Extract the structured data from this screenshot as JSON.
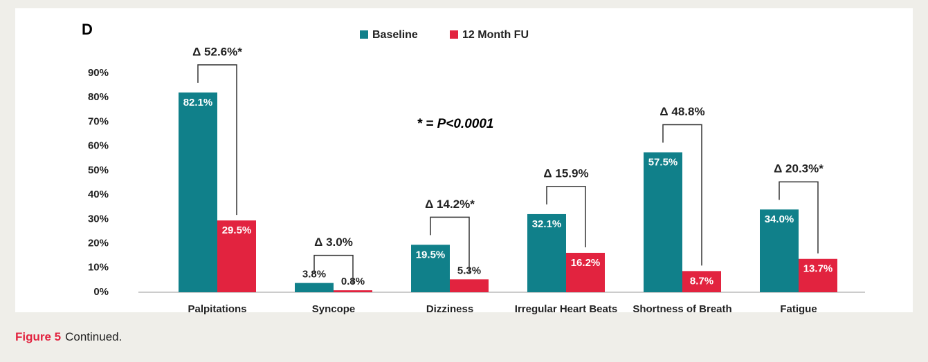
{
  "chart_data": {
    "type": "bar",
    "panel_label": "D",
    "note": "* = P<0.0001",
    "categories": [
      "Palpitations",
      "Syncope",
      "Dizziness",
      "Irregular Heart Beats",
      "Shortness of Breath",
      "Fatigue"
    ],
    "series": [
      {
        "name": "Baseline",
        "color": "#10808a",
        "values": [
          82.1,
          3.8,
          19.5,
          32.1,
          57.5,
          34.0
        ],
        "value_labels": [
          "82.1%",
          "3.8%",
          "19.5%",
          "32.1%",
          "57.5%",
          "34.0%"
        ]
      },
      {
        "name": "12 Month FU",
        "color": "#e2233f",
        "values": [
          29.5,
          0.8,
          5.3,
          16.2,
          8.7,
          13.7
        ],
        "value_labels": [
          "29.5%",
          "0.8%",
          "5.3%",
          "16.2%",
          "8.7%",
          "13.7%"
        ]
      }
    ],
    "annotations": [
      "Δ 52.6%*",
      "Δ 3.0%",
      "Δ 14.2%*",
      "Δ 15.9%",
      "Δ 48.8%",
      "Δ 20.3%*"
    ],
    "ylim": [
      0,
      90
    ],
    "yticks": [
      {
        "value": 0,
        "label": "0%"
      },
      {
        "value": 10,
        "label": "10%"
      },
      {
        "value": 20,
        "label": "20%"
      },
      {
        "value": 30,
        "label": "30%"
      },
      {
        "value": 40,
        "label": "40%"
      },
      {
        "value": 50,
        "label": "50%"
      },
      {
        "value": 60,
        "label": "60%"
      },
      {
        "value": 70,
        "label": "70%"
      },
      {
        "value": 80,
        "label": "80%"
      },
      {
        "value": 90,
        "label": "90%"
      }
    ],
    "grid": false
  },
  "caption": {
    "label": "Figure 5",
    "text": "Continued."
  }
}
